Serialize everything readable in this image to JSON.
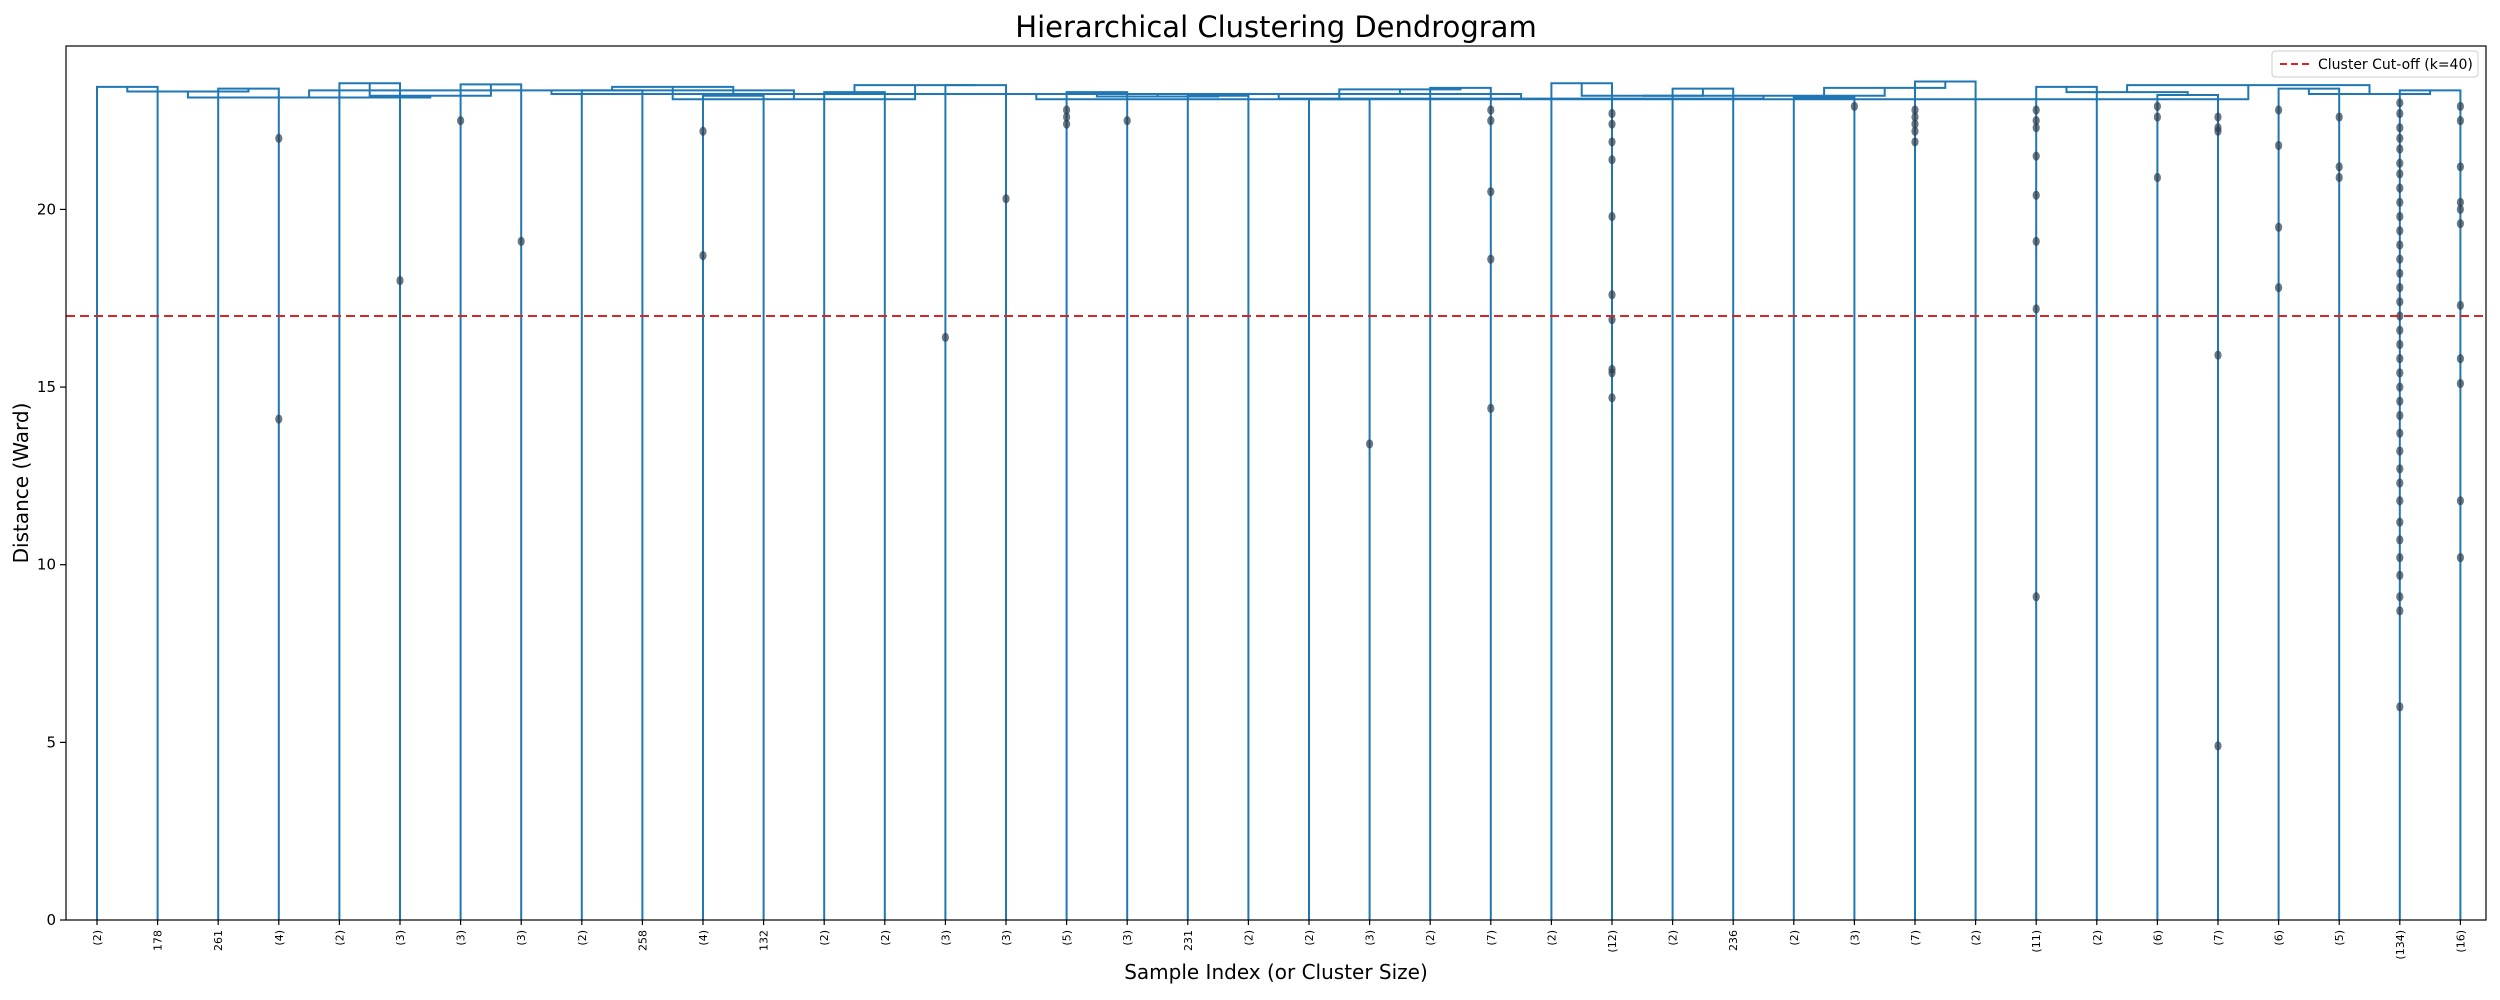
{
  "chart_data": {
    "type": "dendrogram",
    "title": "Hierarchical Clustering Dendrogram",
    "xlabel": "Sample Index (or Cluster Size)",
    "ylabel": "Distance (Ward)",
    "ylim": [
      0,
      24.6
    ],
    "yticks": [
      0,
      5,
      10,
      15,
      20
    ],
    "grid": false,
    "legend": {
      "placement": "top-right",
      "entries": [
        "Cluster Cut-off (k=40)"
      ]
    },
    "cutoff": {
      "y": 17.0,
      "label": "Cluster Cut-off (k=40)"
    },
    "leaf_labels": [
      "(2)",
      "178",
      "261",
      "(4)",
      "(2)",
      "(3)",
      "(3)",
      "(3)",
      "(2)",
      "258",
      "(4)",
      "132",
      "(2)",
      "(2)",
      "(3)",
      "(3)",
      "(5)",
      "(3)",
      "231",
      "(2)",
      "(2)",
      "(3)",
      "(2)",
      "(7)",
      "(2)",
      "(12)",
      "(2)",
      "236",
      "(2)",
      "(3)",
      "(7)",
      "(2)",
      "(11)",
      "(2)",
      "(6)",
      "(7)",
      "(6)",
      "(5)",
      "(134)",
      "(16)"
    ],
    "merge_heights": [
      23.45,
      23.4,
      23.55,
      23.52,
      23.35,
      23.2,
      23.3,
      23.5,
      23.3,
      23.2,
      23.1,
      23.42,
      23.55,
      23.4,
      23.15,
      23.6,
      23.45,
      23.22,
      23.4,
      23.35,
      23.32,
      23.2,
      23.45,
      23.5,
      23.18,
      23.38,
      23.2,
      23.42,
      23.3,
      23.25,
      23.15,
      23.1,
      23.25,
      23.2,
      23.5,
      23.35,
      23.12,
      23.25,
      23.1,
      23.3,
      23.55,
      23.15,
      23.4,
      23.2,
      23.45,
      23.42,
      23.5,
      23.5,
      23.42,
      23.6,
      23.25,
      23.38,
      23.35,
      23.3,
      23.1,
      23.38,
      23.25,
      23.3,
      23.58,
      23.22,
      23.45,
      23.5,
      23.3,
      23.1,
      23.2,
      23.3,
      23.15,
      23.0,
      23.1,
      23.5,
      23.35
    ],
    "leaf_points": [
      {
        "leaf": 3,
        "y": [
          22.0,
          14.1
        ]
      },
      {
        "leaf": 5,
        "y": [
          18.0
        ]
      },
      {
        "leaf": 6,
        "y": [
          22.5
        ]
      },
      {
        "leaf": 7,
        "y": [
          19.1
        ]
      },
      {
        "leaf": 10,
        "y": [
          22.2,
          18.7
        ]
      },
      {
        "leaf": 14,
        "y": [
          16.4
        ]
      },
      {
        "leaf": 15,
        "y": [
          20.3
        ]
      },
      {
        "leaf": 16,
        "y": [
          22.8,
          22.6,
          22.4
        ]
      },
      {
        "leaf": 17,
        "y": [
          22.5
        ]
      },
      {
        "leaf": 21,
        "y": [
          13.4
        ]
      },
      {
        "leaf": 23,
        "y": [
          22.8,
          22.5,
          20.5,
          18.6,
          14.4
        ]
      },
      {
        "leaf": 25,
        "y": [
          22.7,
          22.4,
          21.9,
          21.4,
          19.8,
          17.6,
          16.9,
          15.5,
          15.4,
          14.7
        ]
      },
      {
        "leaf": 29,
        "y": [
          22.9
        ]
      },
      {
        "leaf": 30,
        "y": [
          22.8,
          22.6,
          22.4,
          22.2,
          21.9
        ]
      },
      {
        "leaf": 32,
        "y": [
          22.8,
          22.5,
          22.3,
          21.5,
          20.4,
          19.1,
          17.2,
          9.1
        ]
      },
      {
        "leaf": 34,
        "y": [
          22.9,
          22.6,
          20.9
        ]
      },
      {
        "leaf": 35,
        "y": [
          22.6,
          22.3,
          22.2,
          15.9,
          4.9
        ]
      },
      {
        "leaf": 36,
        "y": [
          22.8,
          21.8,
          19.5,
          17.8
        ]
      },
      {
        "leaf": 37,
        "y": [
          22.6,
          21.2,
          20.9
        ]
      },
      {
        "leaf": 38,
        "y": [
          23.0,
          22.7,
          22.3,
          22.0,
          21.7,
          21.3,
          21.0,
          20.6,
          20.2,
          19.8,
          19.4,
          19.0,
          18.6,
          18.2,
          17.8,
          17.4,
          17.0,
          16.6,
          16.2,
          15.8,
          15.4,
          15.0,
          14.6,
          14.2,
          13.7,
          13.2,
          12.7,
          12.3,
          11.8,
          11.2,
          10.7,
          10.2,
          9.7,
          9.1,
          8.7,
          6.0
        ]
      },
      {
        "leaf": 39,
        "y": [
          22.9,
          22.5,
          21.2,
          20.2,
          20.0,
          19.6,
          17.3,
          15.8,
          15.1,
          11.8,
          10.2
        ]
      }
    ],
    "colors": {
      "link": "#1f77b4",
      "cutoff": "#d62728",
      "point": "#2c3e50"
    }
  }
}
